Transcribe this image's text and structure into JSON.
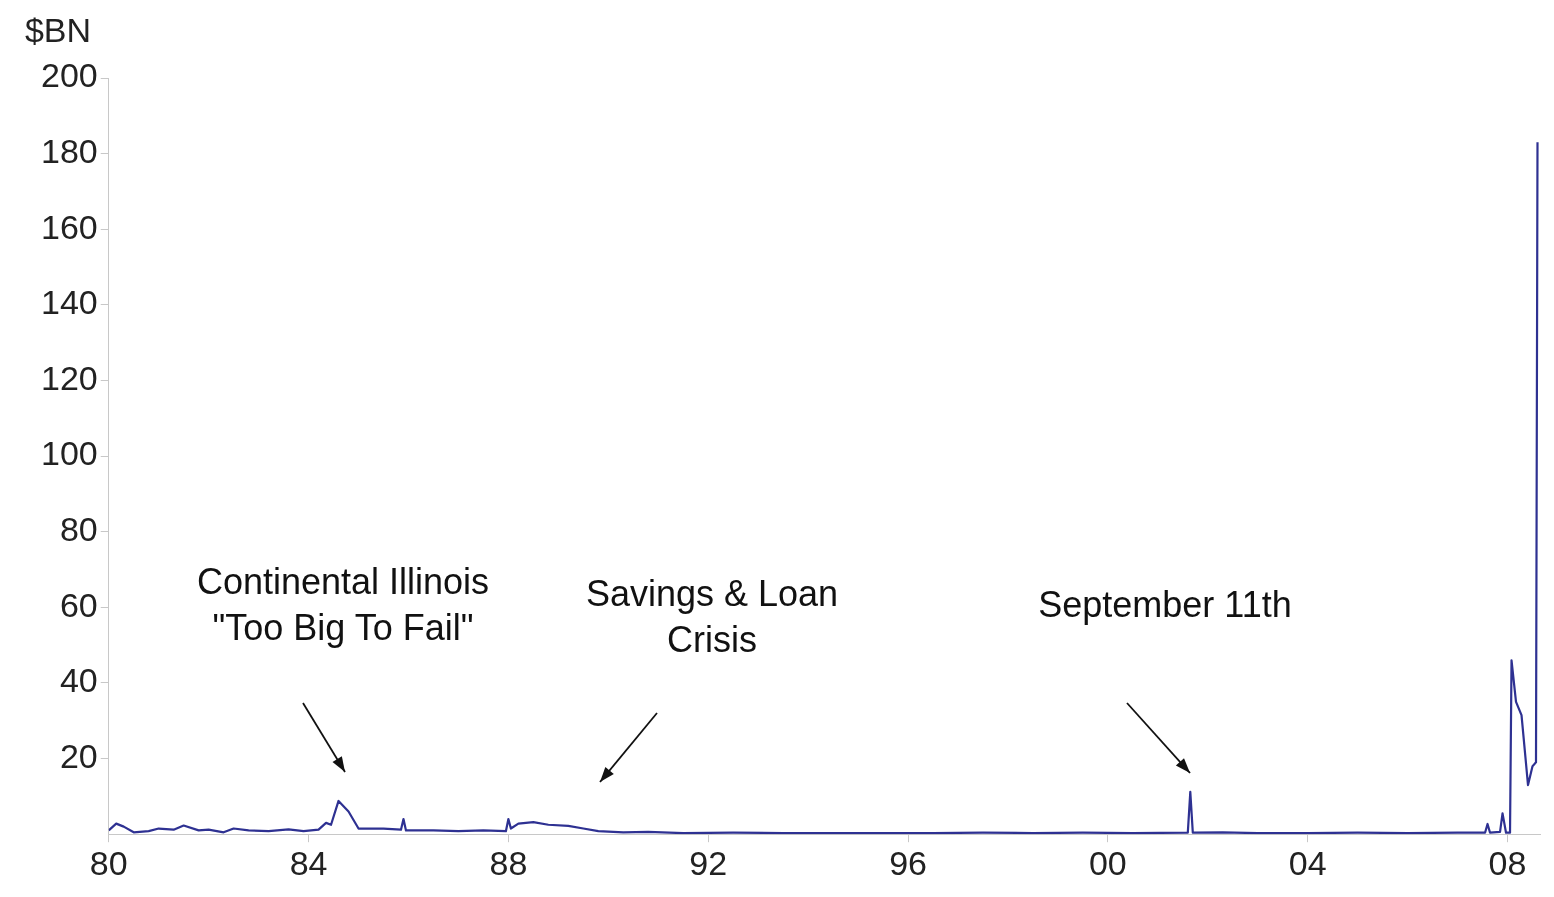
{
  "chart_data": {
    "type": "line",
    "ylabel": "$BN",
    "x": [
      1980.0,
      1980.15,
      1980.3,
      1980.5,
      1980.8,
      1981.0,
      1981.3,
      1981.5,
      1981.8,
      1982.0,
      1982.3,
      1982.5,
      1982.8,
      1983.2,
      1983.6,
      1983.9,
      1984.2,
      1984.35,
      1984.45,
      1984.6,
      1984.8,
      1985.0,
      1985.5,
      1985.85,
      1985.9,
      1985.95,
      1986.5,
      1987.0,
      1987.5,
      1987.95,
      1988.0,
      1988.05,
      1988.2,
      1988.5,
      1988.8,
      1989.2,
      1989.5,
      1989.8,
      1990.3,
      1990.8,
      1991.5,
      1992.5,
      1993.5,
      1994.5,
      1995.5,
      1996.5,
      1997.5,
      1998.5,
      1999.5,
      2000.5,
      2001.6,
      2001.65,
      2001.7,
      2002.3,
      2003.0,
      2004.0,
      2005.0,
      2006.0,
      2007.0,
      2007.55,
      2007.6,
      2007.65,
      2007.85,
      2007.9,
      2007.97,
      2008.05,
      2008.08,
      2008.17,
      2008.28,
      2008.41,
      2008.5,
      2008.57,
      2008.6
    ],
    "values": [
      1.0,
      2.8,
      2.0,
      0.5,
      0.8,
      1.5,
      1.2,
      2.3,
      1.0,
      1.2,
      0.5,
      1.5,
      1.0,
      0.8,
      1.3,
      0.8,
      1.2,
      3.0,
      2.5,
      8.8,
      6.0,
      1.5,
      1.5,
      1.2,
      4.0,
      1.0,
      1.0,
      0.8,
      1.0,
      0.8,
      4.0,
      1.5,
      2.8,
      3.2,
      2.5,
      2.2,
      1.5,
      0.8,
      0.5,
      0.6,
      0.3,
      0.4,
      0.3,
      0.3,
      0.3,
      0.3,
      0.4,
      0.3,
      0.4,
      0.3,
      0.4,
      11.2,
      0.4,
      0.5,
      0.3,
      0.3,
      0.4,
      0.3,
      0.4,
      0.4,
      2.7,
      0.4,
      0.6,
      5.5,
      0.4,
      0.4,
      46,
      35,
      31.5,
      13,
      18,
      19,
      183
    ],
    "color": "#2e3192",
    "xlim": [
      1980,
      2008.65
    ],
    "xticks": [
      {
        "value": 1980,
        "label": "80"
      },
      {
        "value": 1984,
        "label": "84"
      },
      {
        "value": 1988,
        "label": "88"
      },
      {
        "value": 1992,
        "label": "92"
      },
      {
        "value": 1996,
        "label": "96"
      },
      {
        "value": 2000,
        "label": "00"
      },
      {
        "value": 2004,
        "label": "04"
      },
      {
        "value": 2008,
        "label": "08"
      }
    ],
    "ylim": [
      0,
      200
    ],
    "yticks": [
      20,
      40,
      60,
      80,
      100,
      120,
      140,
      160,
      180,
      200
    ],
    "grid": false,
    "annotations": [
      "Continental Illinois\n\"Too Big To Fail\"",
      "Savings & Loan\nCrisis",
      "September 11th"
    ]
  }
}
